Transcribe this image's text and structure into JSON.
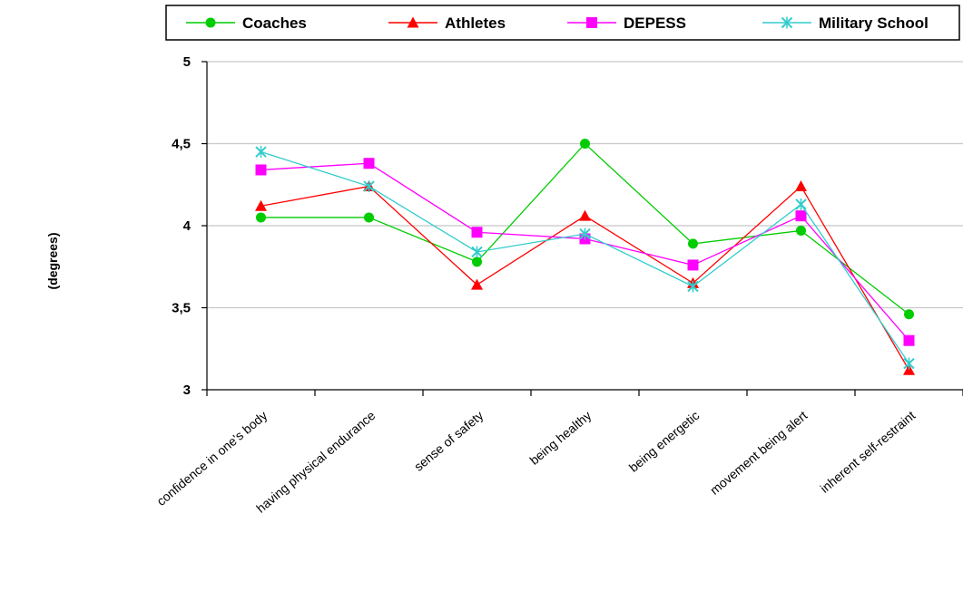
{
  "chart_data": {
    "type": "line",
    "title": "",
    "xlabel": "",
    "ylabel": "(degrees)",
    "categories": [
      "confidence in one's body",
      "having physical endurance",
      "sense of safety",
      "being healthy",
      "being energetic",
      "movement being alert",
      "inherent self-restraint"
    ],
    "ylim": [
      3,
      5
    ],
    "yticks": [
      3,
      3.5,
      4,
      4.5,
      5
    ],
    "ytick_labels": [
      "3",
      "3,5",
      "4",
      "4,5",
      "5"
    ],
    "grid": "horizontal",
    "legend_position": "top",
    "series": [
      {
        "name": "Coaches",
        "color": "#00cc00",
        "marker": "circle",
        "values": [
          4.05,
          4.05,
          3.78,
          4.5,
          3.89,
          3.97,
          3.46
        ]
      },
      {
        "name": "Athletes",
        "color": "#ff0000",
        "marker": "triangle",
        "values": [
          4.12,
          4.24,
          3.64,
          4.06,
          3.65,
          4.24,
          3.12
        ]
      },
      {
        "name": "DEPESS",
        "color": "#ff00ff",
        "marker": "square",
        "values": [
          4.34,
          4.38,
          3.96,
          3.92,
          3.76,
          4.06,
          3.3
        ]
      },
      {
        "name": "Military School",
        "color": "#33cccc",
        "marker": "x",
        "values": [
          4.45,
          4.24,
          3.84,
          3.95,
          3.63,
          4.13,
          3.16
        ]
      }
    ]
  }
}
